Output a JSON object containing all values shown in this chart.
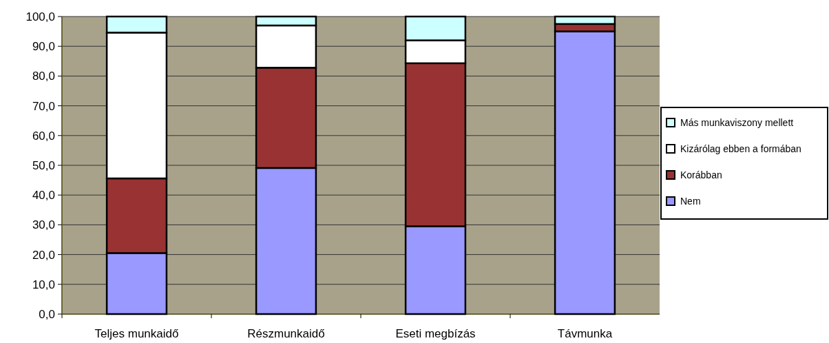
{
  "chart_data": {
    "type": "bar",
    "stacked": true,
    "categories": [
      "Teljes munkaidő",
      "Részmunkaidő",
      "Eseti megbízás",
      "Távmunka"
    ],
    "series": [
      {
        "name": "Nem",
        "color": "#9999ff",
        "values": [
          20.5,
          49.1,
          29.5,
          95.0
        ]
      },
      {
        "name": "Korábban",
        "color": "#993333",
        "values": [
          25.1,
          33.7,
          54.8,
          2.5
        ]
      },
      {
        "name": "Kizárólag ebben a formában",
        "color": "#ffffff",
        "values": [
          49.0,
          14.2,
          7.7,
          0
        ]
      },
      {
        "name": "Más munkaviszony mellett",
        "color": "#ccffff",
        "values": [
          5.4,
          3.0,
          8.0,
          2.5
        ]
      }
    ],
    "ylim": [
      0,
      100
    ],
    "yticks": [
      {
        "value": 0,
        "label": "0,0"
      },
      {
        "value": 10,
        "label": "10,0"
      },
      {
        "value": 20,
        "label": "20,0"
      },
      {
        "value": 30,
        "label": "30,0"
      },
      {
        "value": 40,
        "label": "40,0"
      },
      {
        "value": 50,
        "label": "50,0"
      },
      {
        "value": 60,
        "label": "60,0"
      },
      {
        "value": 70,
        "label": "70,0"
      },
      {
        "value": 80,
        "label": "80,0"
      },
      {
        "value": 90,
        "label": "90,0"
      },
      {
        "value": 100,
        "label": "100,0"
      }
    ],
    "grid": "y",
    "legend": "right"
  }
}
